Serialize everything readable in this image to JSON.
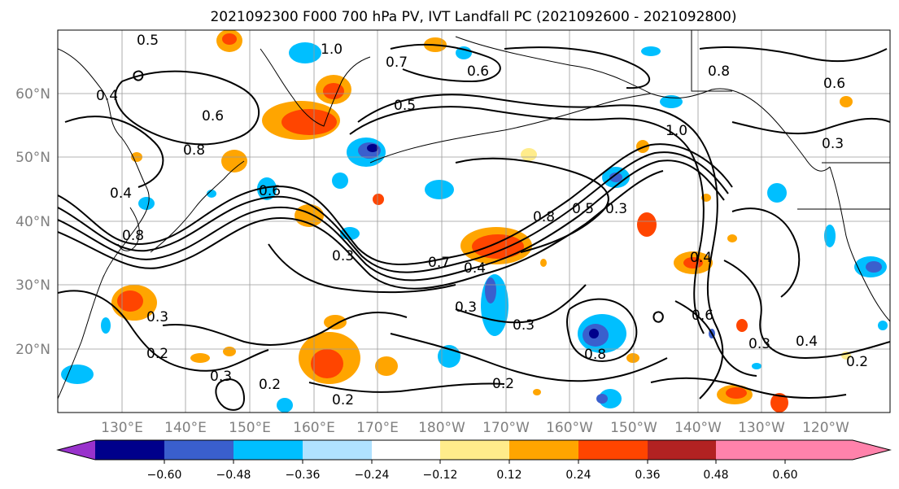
{
  "title": "2021092300 F000 700 hPa PV, IVT Landfall PC (2021092600 - 2021092800)",
  "lat_labels": [
    "60°N",
    "50°N",
    "40°N",
    "30°N",
    "20°N"
  ],
  "lon_labels": [
    "130°E",
    "140°E",
    "150°E",
    "160°E",
    "170°E",
    "180°W",
    "170°W",
    "160°W",
    "150°W",
    "140°W",
    "130°W",
    "120°W"
  ],
  "colorbar": {
    "colors": [
      "#9932CC",
      "#00008B",
      "#3A5FCD",
      "#00BFFF",
      "#B0E2FF",
      "#FFFFFF",
      "#FFEC8B",
      "#FFA500",
      "#FF4500",
      "#B22222",
      "#FF82AB"
    ],
    "tick_labels": [
      "−0.60",
      "−0.48",
      "−0.36",
      "−0.24",
      "−0.12",
      "0.12",
      "0.24",
      "0.36",
      "0.48",
      "0.60"
    ]
  },
  "contour_labels": [
    "0.5",
    "1.0",
    "0.7",
    "0.6",
    "0.8",
    "0.4",
    "0.5",
    "0.6",
    "0.6",
    "0.8",
    "0.4",
    "0.6",
    "0.8",
    "1.0",
    "0.3",
    "0.8",
    "0.5",
    "0.3",
    "0.3",
    "0.7",
    "0.4",
    "0.3",
    "0.3",
    "0.2",
    "0.3",
    "0.2",
    "0.2",
    "0.4",
    "0.2",
    "0.6",
    "0.3",
    "0.4",
    "0.8",
    "0.3",
    "0.2"
  ]
}
